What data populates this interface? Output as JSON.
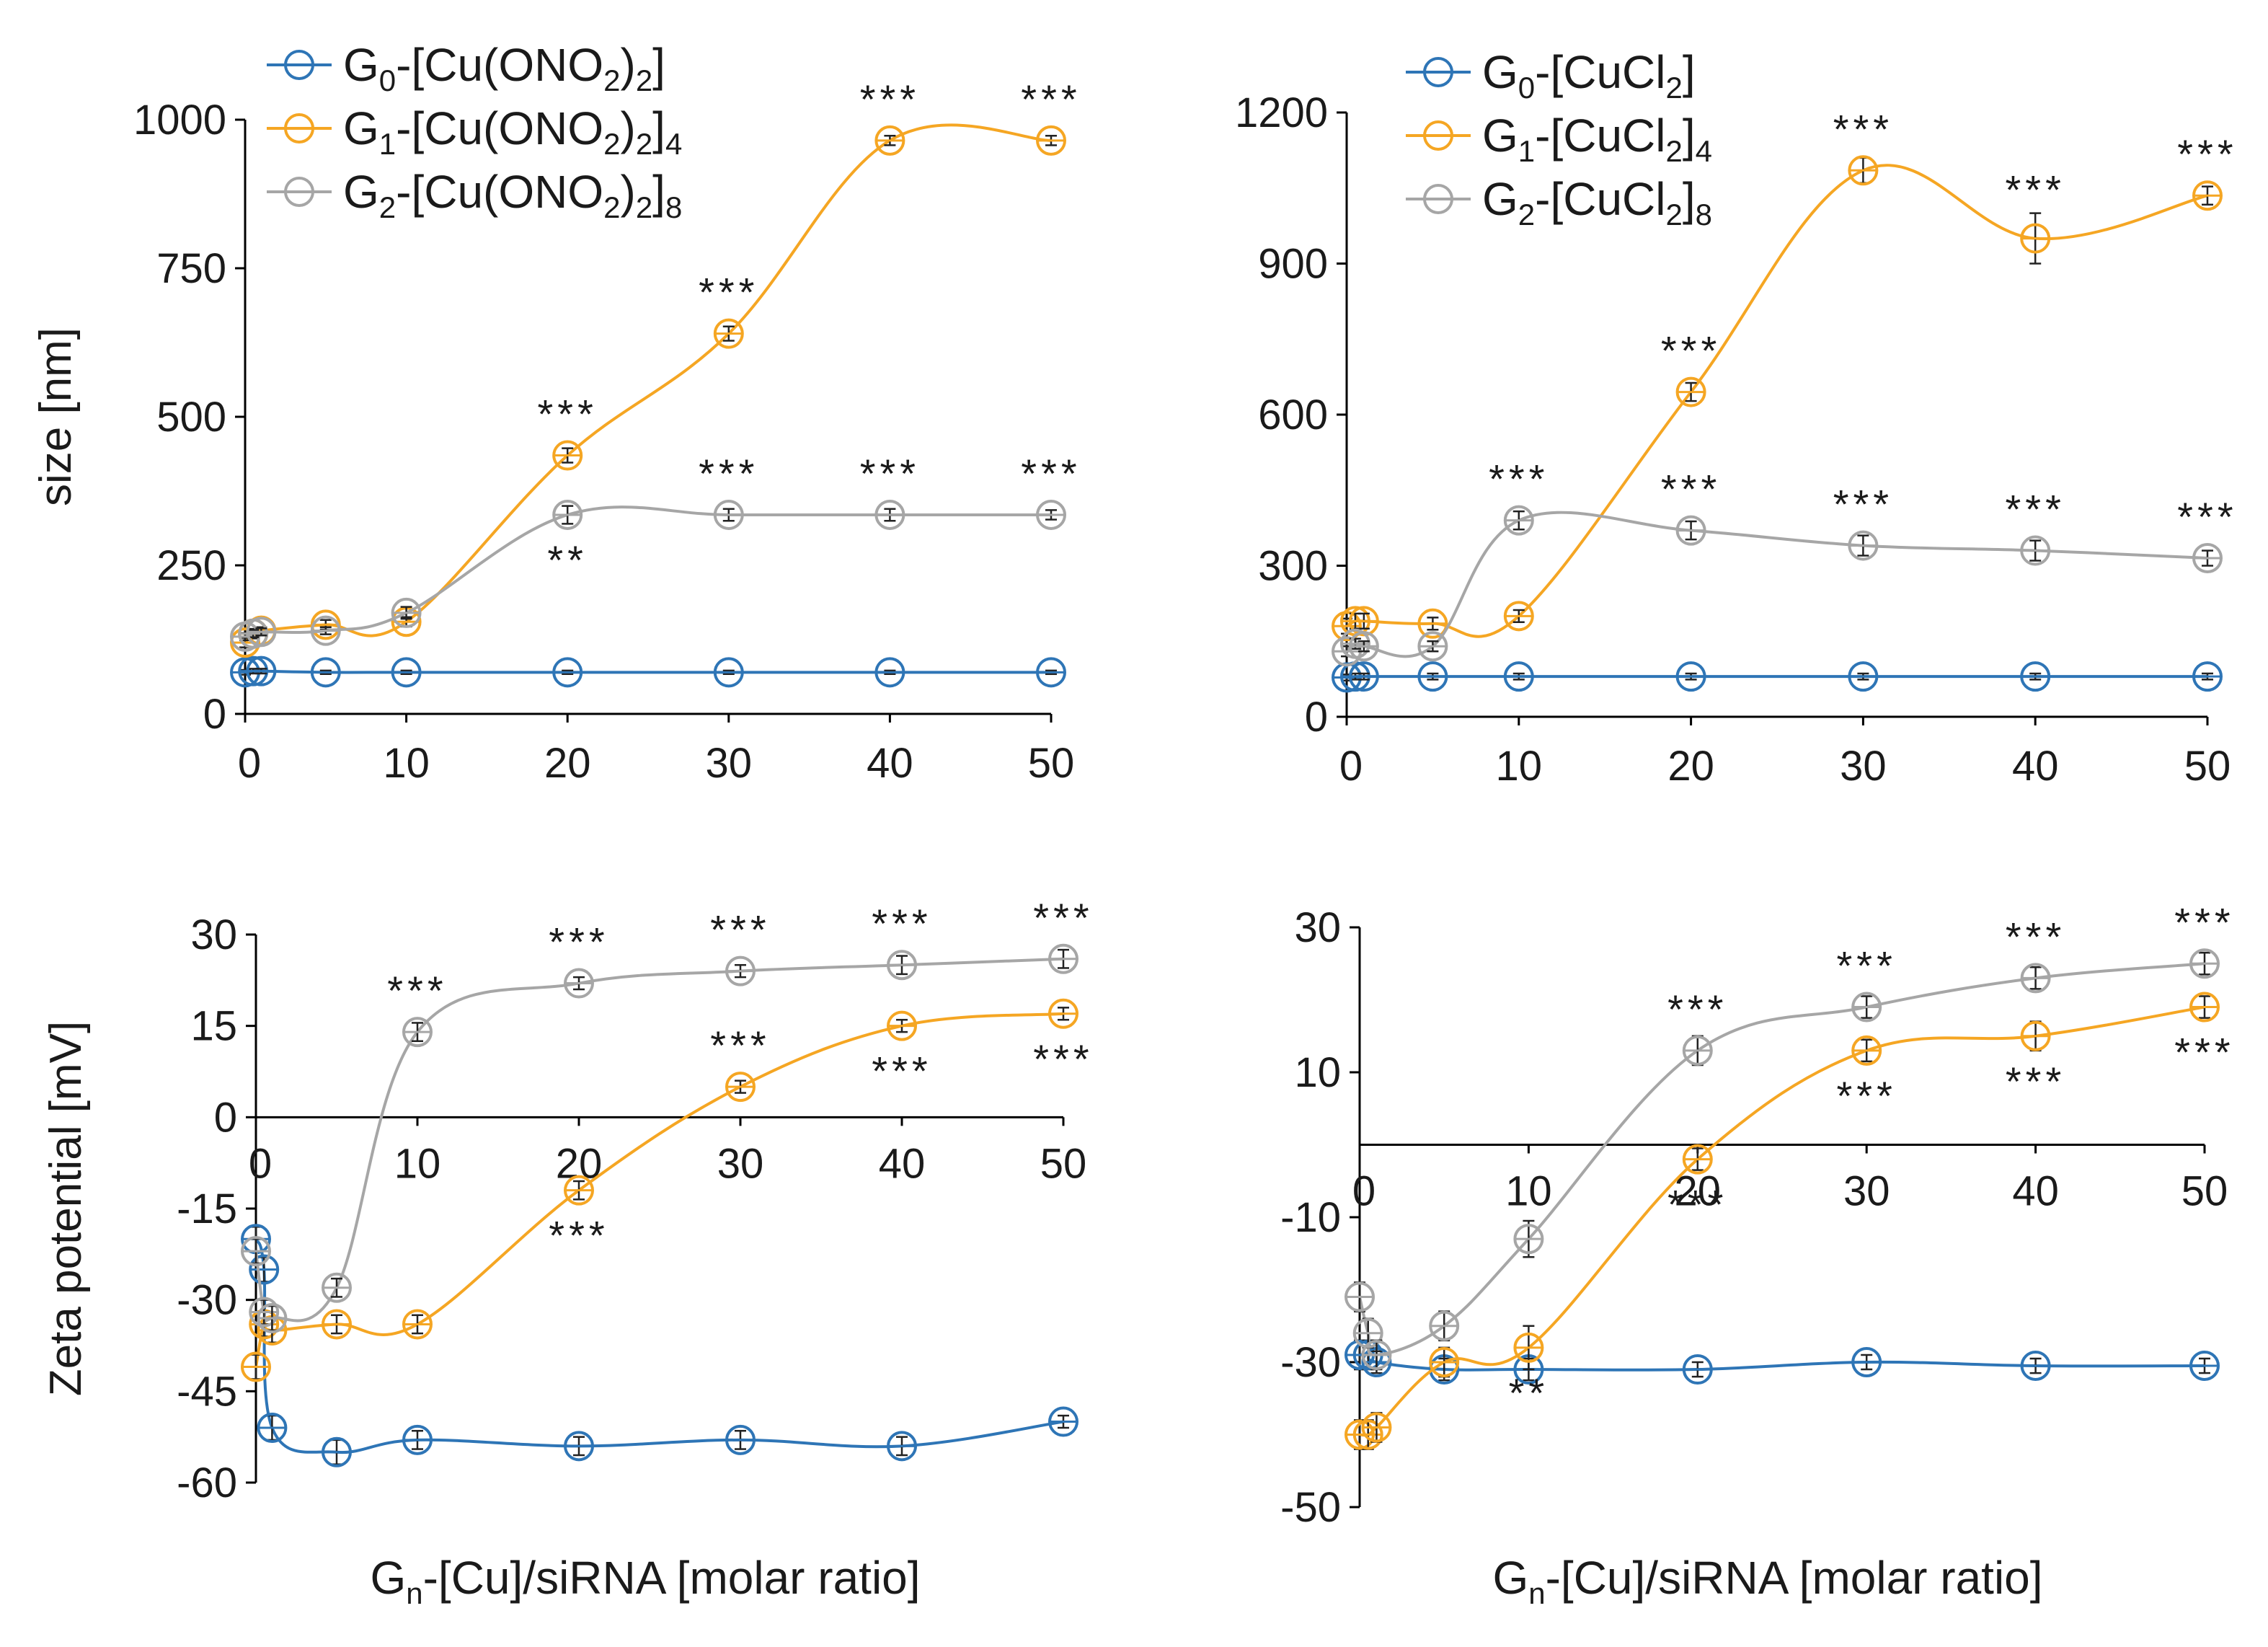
{
  "colors": {
    "G0": "#2e75b6",
    "G1": "#f5a623",
    "G2": "#a6a6a6"
  },
  "chart_data": [
    {
      "type": "line",
      "panel": "top-left",
      "ylabel": "size [nm]",
      "xlabel": "",
      "xlim": [
        0,
        50
      ],
      "ylim": [
        0,
        1000
      ],
      "xticks": [
        0,
        10,
        20,
        30,
        40,
        50
      ],
      "yticks": [
        0,
        250,
        500,
        750,
        1000
      ],
      "legend": [
        {
          "key": "G0",
          "base": "G",
          "sub": "0",
          "text": "-[Cu(ONO",
          "sub2": "2",
          "text2": ")",
          "sub3": "2",
          "text3": "]",
          "sub4": ""
        },
        {
          "key": "G1",
          "base": "G",
          "sub": "1",
          "text": "-[Cu(ONO",
          "sub2": "2",
          "text2": ")",
          "sub3": "2",
          "text3": "]",
          "sub4": "4"
        },
        {
          "key": "G2",
          "base": "G",
          "sub": "2",
          "text": "-[Cu(ONO",
          "sub2": "2",
          "text2": ")",
          "sub3": "2",
          "text3": "]",
          "sub4": "8"
        }
      ],
      "legend_position": "top-left",
      "series": [
        {
          "key": "G0",
          "name": "G0-[Cu(ONO2)2]",
          "x": [
            0,
            0.5,
            1,
            5,
            10,
            20,
            30,
            40,
            50
          ],
          "y": [
            70,
            72,
            72,
            70,
            70,
            70,
            70,
            70,
            70
          ],
          "err": [
            4,
            4,
            4,
            3,
            3,
            3,
            3,
            3,
            3
          ]
        },
        {
          "key": "G1",
          "name": "G1-[Cu(ONO2)2]4",
          "x": [
            0,
            0.5,
            1,
            5,
            10,
            20,
            30,
            40,
            50
          ],
          "y": [
            120,
            135,
            140,
            150,
            155,
            435,
            640,
            965,
            965
          ],
          "err": [
            8,
            8,
            6,
            8,
            8,
            12,
            12,
            8,
            8
          ]
        },
        {
          "key": "G2",
          "name": "G2-[Cu(ONO2)2]8",
          "x": [
            0,
            0.5,
            1,
            5,
            10,
            20,
            30,
            40,
            50
          ],
          "y": [
            130,
            135,
            138,
            140,
            170,
            335,
            335,
            335,
            335
          ],
          "err": [
            6,
            6,
            6,
            6,
            10,
            15,
            10,
            10,
            8
          ]
        }
      ],
      "annotations": [
        {
          "x": 20,
          "y": 435,
          "text": "***",
          "pos": "above"
        },
        {
          "x": 30,
          "y": 640,
          "text": "***",
          "pos": "above"
        },
        {
          "x": 40,
          "y": 965,
          "text": "***",
          "pos": "above"
        },
        {
          "x": 50,
          "y": 965,
          "text": "***",
          "pos": "above"
        },
        {
          "x": 20,
          "y": 335,
          "text": "**",
          "pos": "below"
        },
        {
          "x": 30,
          "y": 335,
          "text": "***",
          "pos": "above"
        },
        {
          "x": 40,
          "y": 335,
          "text": "***",
          "pos": "above"
        },
        {
          "x": 50,
          "y": 335,
          "text": "***",
          "pos": "above"
        }
      ]
    },
    {
      "type": "line",
      "panel": "top-right",
      "ylabel": "",
      "xlabel": "",
      "xlim": [
        0,
        50
      ],
      "ylim": [
        0,
        1200
      ],
      "xticks": [
        0,
        10,
        20,
        30,
        40,
        50
      ],
      "yticks": [
        0,
        300,
        600,
        900,
        1200
      ],
      "legend": [
        {
          "key": "G0",
          "base": "G",
          "sub": "0",
          "text": "-[CuCl",
          "sub2": "2",
          "text2": "]",
          "sub3": "",
          "text3": "",
          "sub4": ""
        },
        {
          "key": "G1",
          "base": "G",
          "sub": "1",
          "text": "-[CuCl",
          "sub2": "2",
          "text2": "]",
          "sub3": "4",
          "text3": "",
          "sub4": ""
        },
        {
          "key": "G2",
          "base": "G",
          "sub": "2",
          "text": "-[CuCl",
          "sub2": "2",
          "text2": "]",
          "sub3": "8",
          "text3": "",
          "sub4": ""
        }
      ],
      "legend_position": "top-center",
      "series": [
        {
          "key": "G0",
          "name": "G0-[CuCl2]",
          "x": [
            0,
            0.5,
            1,
            5,
            10,
            20,
            30,
            40,
            50
          ],
          "y": [
            78,
            80,
            80,
            80,
            80,
            80,
            80,
            80,
            80
          ],
          "err": [
            6,
            6,
            6,
            6,
            6,
            6,
            6,
            6,
            6
          ]
        },
        {
          "key": "G1",
          "name": "G1-[CuCl2]4",
          "x": [
            0,
            0.5,
            1,
            5,
            10,
            20,
            30,
            40,
            50
          ],
          "y": [
            180,
            190,
            190,
            185,
            200,
            645,
            1085,
            950,
            1035
          ],
          "err": [
            15,
            15,
            15,
            12,
            12,
            18,
            25,
            50,
            18
          ]
        },
        {
          "key": "G2",
          "name": "G2-[CuCl2]8",
          "x": [
            0,
            0.5,
            1,
            5,
            10,
            20,
            30,
            40,
            50
          ],
          "y": [
            130,
            145,
            140,
            140,
            390,
            370,
            340,
            330,
            315
          ],
          "err": [
            10,
            10,
            10,
            10,
            18,
            18,
            20,
            20,
            15
          ]
        }
      ],
      "annotations": [
        {
          "x": 10,
          "y": 390,
          "text": "***",
          "pos": "above"
        },
        {
          "x": 20,
          "y": 645,
          "text": "***",
          "pos": "above"
        },
        {
          "x": 30,
          "y": 1085,
          "text": "***",
          "pos": "above"
        },
        {
          "x": 40,
          "y": 950,
          "text": "***",
          "pos": "above2"
        },
        {
          "x": 50,
          "y": 1035,
          "text": "***",
          "pos": "above"
        },
        {
          "x": 20,
          "y": 370,
          "text": "***",
          "pos": "above"
        },
        {
          "x": 30,
          "y": 340,
          "text": "***",
          "pos": "above"
        },
        {
          "x": 40,
          "y": 330,
          "text": "***",
          "pos": "above"
        },
        {
          "x": 50,
          "y": 315,
          "text": "***",
          "pos": "above"
        }
      ]
    },
    {
      "type": "line",
      "panel": "bottom-left",
      "ylabel": "Zeta potential [mV]",
      "xlabel_parts": {
        "pre": "G",
        "sub": "n",
        "post": "-[Cu]/siRNA [molar ratio]"
      },
      "xlim": [
        0,
        50
      ],
      "ylim": [
        -60,
        30
      ],
      "xticks": [
        0,
        10,
        20,
        30,
        40,
        50
      ],
      "yticks": [
        -60,
        -45,
        -30,
        -15,
        0,
        15,
        30
      ],
      "series": [
        {
          "key": "G0",
          "name": "G0-[Cu(ONO2)2]",
          "x": [
            0,
            0.5,
            1,
            5,
            10,
            20,
            30,
            40,
            50
          ],
          "y": [
            -20,
            -25,
            -51,
            -55,
            -53,
            -54,
            -53,
            -54,
            -50
          ],
          "err": [
            2,
            2,
            2,
            2,
            1.5,
            1.5,
            1.5,
            1.5,
            1
          ]
        },
        {
          "key": "G1",
          "name": "G1-[Cu(ONO2)2]4",
          "x": [
            0,
            0.5,
            1,
            5,
            10,
            20,
            30,
            40,
            50
          ],
          "y": [
            -41,
            -34,
            -35,
            -34,
            -34,
            -12,
            5,
            15,
            17
          ],
          "err": [
            2,
            2,
            2,
            1.5,
            1.5,
            1.5,
            1,
            1,
            1
          ]
        },
        {
          "key": "G2",
          "name": "G2-[Cu(ONO2)2]8",
          "x": [
            0,
            0.5,
            1,
            5,
            10,
            20,
            30,
            40,
            50
          ],
          "y": [
            -22,
            -32,
            -33,
            -28,
            14,
            22,
            24,
            25,
            26
          ],
          "err": [
            2,
            2,
            2,
            1.5,
            1.5,
            1,
            1,
            1.5,
            1.5
          ]
        }
      ],
      "annotations": [
        {
          "x": 10,
          "y": 14,
          "text": "***",
          "pos": "above"
        },
        {
          "x": 20,
          "y": 22,
          "text": "***",
          "pos": "above"
        },
        {
          "x": 30,
          "y": 24,
          "text": "***",
          "pos": "above"
        },
        {
          "x": 40,
          "y": 25,
          "text": "***",
          "pos": "above"
        },
        {
          "x": 50,
          "y": 26,
          "text": "***",
          "pos": "above"
        },
        {
          "x": 20,
          "y": -12,
          "text": "***",
          "pos": "below"
        },
        {
          "x": 30,
          "y": 5,
          "text": "***",
          "pos": "above"
        },
        {
          "x": 40,
          "y": 15,
          "text": "***",
          "pos": "below"
        },
        {
          "x": 50,
          "y": 17,
          "text": "***",
          "pos": "below"
        }
      ]
    },
    {
      "type": "line",
      "panel": "bottom-right",
      "ylabel": "",
      "xlabel_parts": {
        "pre": "G",
        "sub": "n",
        "post": "-[Cu]/siRNA [molar ratio]"
      },
      "xlim": [
        0,
        50
      ],
      "ylim": [
        -50,
        30
      ],
      "xticks": [
        0,
        10,
        20,
        30,
        40,
        50
      ],
      "yticks": [
        -50,
        -30,
        -10,
        10,
        30
      ],
      "series": [
        {
          "key": "G0",
          "name": "G0-[CuCl2]",
          "x": [
            0,
            0.5,
            1,
            5,
            10,
            20,
            30,
            40,
            50
          ],
          "y": [
            -29,
            -29,
            -30,
            -31,
            -31,
            -31,
            -30,
            -30.5,
            -30.5
          ],
          "err": [
            2,
            2,
            1.5,
            1.5,
            1.5,
            1,
            1,
            1,
            1
          ]
        },
        {
          "key": "G1",
          "name": "G1-[CuCl2]4",
          "x": [
            0,
            0.5,
            1,
            5,
            10,
            20,
            30,
            40,
            50
          ],
          "y": [
            -40,
            -40,
            -39,
            -30,
            -28,
            -2,
            13,
            15,
            19
          ],
          "err": [
            2,
            2,
            2,
            2,
            3,
            1.5,
            1.5,
            2,
            1.5
          ]
        },
        {
          "key": "G2",
          "name": "G2-[CuCl2]8",
          "x": [
            0,
            0.5,
            1,
            5,
            10,
            20,
            30,
            40,
            50
          ],
          "y": [
            -21,
            -26,
            -29,
            -25,
            -13,
            13,
            19,
            23,
            25
          ],
          "err": [
            2,
            2,
            2,
            2,
            2.5,
            2,
            1.5,
            1.5,
            1.5
          ]
        }
      ],
      "annotations": [
        {
          "x": 10,
          "y": -28,
          "text": "**",
          "pos": "below"
        },
        {
          "x": 20,
          "y": 13,
          "text": "***",
          "pos": "above"
        },
        {
          "x": 30,
          "y": 19,
          "text": "***",
          "pos": "above"
        },
        {
          "x": 40,
          "y": 23,
          "text": "***",
          "pos": "above"
        },
        {
          "x": 50,
          "y": 25,
          "text": "***",
          "pos": "above"
        },
        {
          "x": 20,
          "y": -2,
          "text": "***",
          "pos": "below"
        },
        {
          "x": 30,
          "y": 13,
          "text": "***",
          "pos": "below"
        },
        {
          "x": 40,
          "y": 15,
          "text": "***",
          "pos": "below"
        },
        {
          "x": 50,
          "y": 19,
          "text": "***",
          "pos": "below"
        }
      ]
    }
  ]
}
